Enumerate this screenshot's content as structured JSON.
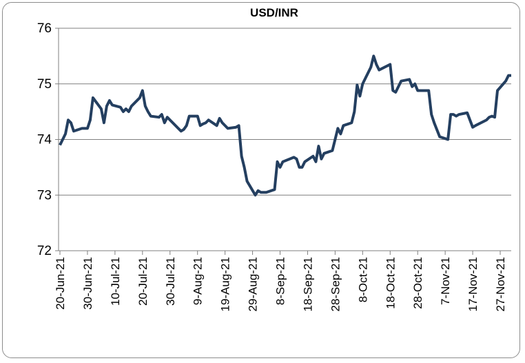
{
  "chart_data": {
    "type": "line",
    "title": "USD/INR",
    "x": [
      "20-Jun-21",
      "22-Jun-21",
      "23-Jun-21",
      "24-Jun-21",
      "25-Jun-21",
      "28-Jun-21",
      "29-Jun-21",
      "30-Jun-21",
      "1-Jul-21",
      "2-Jul-21",
      "5-Jul-21",
      "6-Jul-21",
      "7-Jul-21",
      "8-Jul-21",
      "9-Jul-21",
      "12-Jul-21",
      "13-Jul-21",
      "14-Jul-21",
      "15-Jul-21",
      "16-Jul-21",
      "19-Jul-21",
      "20-Jul-21",
      "21-Jul-21",
      "22-Jul-21",
      "23-Jul-21",
      "26-Jul-21",
      "27-Jul-21",
      "28-Jul-21",
      "29-Jul-21",
      "30-Jul-21",
      "2-Aug-21",
      "3-Aug-21",
      "4-Aug-21",
      "5-Aug-21",
      "6-Aug-21",
      "9-Aug-21",
      "10-Aug-21",
      "11-Aug-21",
      "12-Aug-21",
      "13-Aug-21",
      "16-Aug-21",
      "17-Aug-21",
      "18-Aug-21",
      "20-Aug-21",
      "23-Aug-21",
      "24-Aug-21",
      "25-Aug-21",
      "26-Aug-21",
      "27-Aug-21",
      "30-Aug-21",
      "31-Aug-21",
      "1-Sep-21",
      "2-Sep-21",
      "3-Sep-21",
      "6-Sep-21",
      "7-Sep-21",
      "8-Sep-21",
      "9-Sep-21",
      "13-Sep-21",
      "14-Sep-21",
      "15-Sep-21",
      "16-Sep-21",
      "17-Sep-21",
      "20-Sep-21",
      "21-Sep-21",
      "22-Sep-21",
      "23-Sep-21",
      "24-Sep-21",
      "27-Sep-21",
      "28-Sep-21",
      "29-Sep-21",
      "30-Sep-21",
      "1-Oct-21",
      "4-Oct-21",
      "5-Oct-21",
      "6-Oct-21",
      "7-Oct-21",
      "8-Oct-21",
      "11-Oct-21",
      "12-Oct-21",
      "13-Oct-21",
      "14-Oct-21",
      "18-Oct-21",
      "19-Oct-21",
      "20-Oct-21",
      "21-Oct-21",
      "22-Oct-21",
      "25-Oct-21",
      "26-Oct-21",
      "27-Oct-21",
      "28-Oct-21",
      "29-Oct-21",
      "1-Nov-21",
      "2-Nov-21",
      "3-Nov-21",
      "5-Nov-21",
      "8-Nov-21",
      "9-Nov-21",
      "10-Nov-21",
      "11-Nov-21",
      "12-Nov-21",
      "15-Nov-21",
      "16-Nov-21",
      "17-Nov-21",
      "18-Nov-21",
      "22-Nov-21",
      "23-Nov-21",
      "24-Nov-21",
      "25-Nov-21",
      "26-Nov-21",
      "29-Nov-21",
      "30-Nov-21",
      "1-Dec-21"
    ],
    "series": [
      {
        "name": "USD/INR",
        "color": "#243f60",
        "values": [
          73.9,
          74.1,
          74.35,
          74.3,
          74.15,
          74.2,
          74.2,
          74.2,
          74.35,
          74.75,
          74.55,
          74.3,
          74.6,
          74.7,
          74.62,
          74.58,
          74.5,
          74.55,
          74.5,
          74.6,
          74.75,
          74.88,
          74.6,
          74.5,
          74.42,
          74.4,
          74.45,
          74.3,
          74.4,
          74.35,
          74.2,
          74.15,
          74.18,
          74.25,
          74.42,
          74.42,
          74.25,
          74.28,
          74.3,
          74.35,
          74.25,
          74.38,
          74.3,
          74.2,
          74.22,
          74.25,
          73.7,
          73.5,
          73.25,
          73.0,
          73.08,
          73.05,
          73.05,
          73.05,
          73.1,
          73.6,
          73.5,
          73.6,
          73.68,
          73.65,
          73.5,
          73.5,
          73.6,
          73.7,
          73.6,
          73.88,
          73.65,
          73.75,
          73.8,
          74.0,
          74.2,
          74.1,
          74.25,
          74.3,
          74.5,
          74.98,
          74.78,
          75.0,
          75.3,
          75.5,
          75.35,
          75.25,
          75.35,
          74.88,
          74.85,
          74.95,
          75.05,
          75.08,
          74.95,
          75.0,
          74.88,
          74.88,
          74.88,
          74.45,
          74.3,
          74.05,
          74.0,
          74.45,
          74.45,
          74.42,
          74.45,
          74.48,
          74.35,
          74.22,
          74.25,
          74.35,
          74.4,
          74.42,
          74.4,
          74.88,
          75.05,
          75.15,
          75.15
        ]
      }
    ],
    "xlim": [
      "20-Jun-21",
      "1-Dec-21"
    ],
    "xticks": [
      "20-Jun-21",
      "30-Jun-21",
      "10-Jul-21",
      "20-Jul-21",
      "30-Jul-21",
      "9-Aug-21",
      "19-Aug-21",
      "29-Aug-21",
      "8-Sep-21",
      "18-Sep-21",
      "28-Sep-21",
      "8-Oct-21",
      "18-Oct-21",
      "28-Oct-21",
      "7-Nov-21",
      "17-Nov-21",
      "27-Nov-21"
    ],
    "ylim": [
      72,
      76
    ],
    "yticks": [
      72,
      73,
      74,
      75,
      76
    ],
    "grid": true
  }
}
